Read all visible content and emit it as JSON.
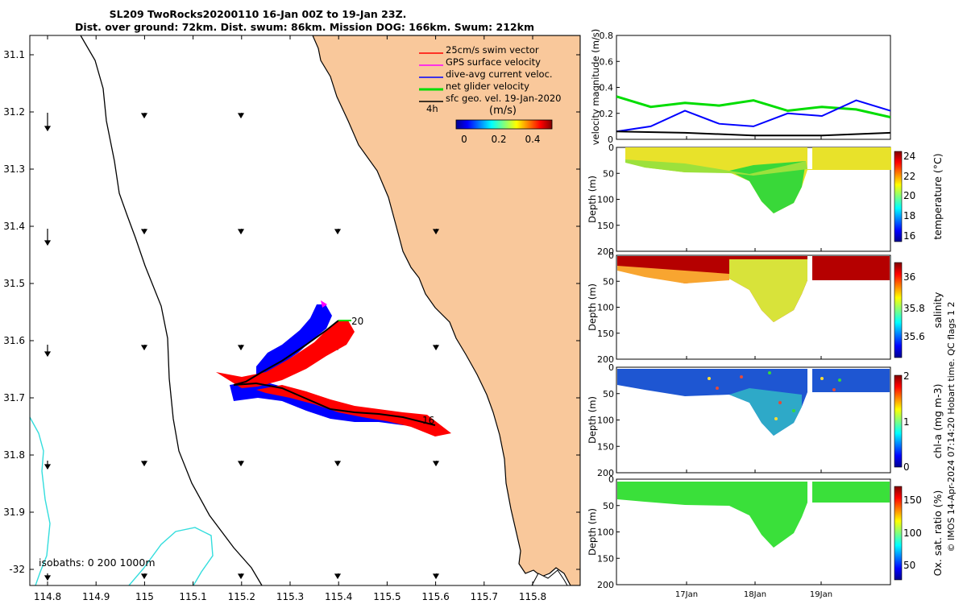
{
  "title": {
    "line1": "SL209 TwoRocks20200110 16-Jan 00Z to 19-Jan 23Z.",
    "line2": "Dist. over ground: 72km. Dist. swum: 86km. Mission DOG: 166km. Swum: 212km"
  },
  "map": {
    "x_ticks": [
      "114.8",
      "114.9",
      "115",
      "115.1",
      "115.2",
      "115.3",
      "115.4",
      "115.5",
      "115.6",
      "115.7",
      "115.8"
    ],
    "y_ticks": [
      "31.1",
      "31.2",
      "31.3",
      "31.4",
      "31.5",
      "31.6",
      "31.7",
      "31.8",
      "31.9",
      "-32"
    ],
    "legend": [
      {
        "label": "25cm/s swim vector",
        "color": "#ff0000"
      },
      {
        "label": "GPS surface velocity",
        "color": "#ff00ff"
      },
      {
        "label": "dive-avg current veloc.",
        "color": "#0000ff"
      },
      {
        "label": "net glider velocity",
        "color": "#00dd00"
      },
      {
        "label": "sfc geo. vel. 19-Jan-2020",
        "color": "#000000"
      }
    ],
    "legend_scale_label": "4h",
    "colorbar": {
      "title": "(m/s)",
      "ticks": [
        "0",
        "0.2",
        "0.4"
      ]
    },
    "track_labels": {
      "start": "16",
      "end": "20"
    },
    "isobaths_label": "isobaths: 0   200  1000m",
    "colors": {
      "land": "#f9c89b",
      "ocean": "#ffffff",
      "coast": "#000000",
      "isobath": "#33dddd",
      "current": "#0000ff",
      "swim": "#ff0000"
    }
  },
  "velocity_panel": {
    "ylabel": "velocity magnitude (m/s)",
    "y_ticks": [
      "0",
      "0.2",
      "0.4",
      "0.6",
      "0.8"
    ],
    "ylim": [
      0,
      0.8
    ]
  },
  "sections": [
    {
      "ylabel": "Depth (m)",
      "cbar_label": "temperature (°C)",
      "cbar_ticks": [
        "24",
        "22",
        "20",
        "18",
        "16"
      ],
      "y_ticks": [
        "0",
        "50",
        "100",
        "150",
        "200"
      ]
    },
    {
      "ylabel": "Depth (m)",
      "cbar_label": "salinity",
      "cbar_ticks": [
        "36",
        "35.8",
        "35.6"
      ],
      "y_ticks": [
        "0",
        "50",
        "100",
        "150",
        "200"
      ]
    },
    {
      "ylabel": "Depth (m)",
      "cbar_label": "chl-a (mg m-3)",
      "cbar_ticks": [
        "2",
        "1",
        "0"
      ],
      "y_ticks": [
        "0",
        "50",
        "100",
        "150",
        "200"
      ]
    },
    {
      "ylabel": "Depth (m)",
      "cbar_label": "Ox. sat. ratio (%)",
      "cbar_ticks": [
        "150",
        "100",
        "50"
      ],
      "y_ticks": [
        "0",
        "50",
        "100",
        "150",
        "200"
      ]
    }
  ],
  "time_ticks": [
    "17Jan",
    "18Jan",
    "19Jan"
  ],
  "footer": "© IMOS 14-Apr-2024 07:14:20 Hobart time. QC flags 1  2",
  "chart_data": [
    {
      "type": "line",
      "title": "",
      "xlabel": "",
      "ylabel": "velocity magnitude (m/s)",
      "ylim": [
        0,
        0.8
      ],
      "x_ticks": [
        "17Jan",
        "18Jan",
        "19Jan"
      ],
      "series": [
        {
          "name": "net glider velocity",
          "color": "#00dd00",
          "x": [
            16.0,
            16.5,
            17.0,
            17.5,
            18.0,
            18.5,
            19.0,
            19.5,
            20.0
          ],
          "values": [
            0.33,
            0.25,
            0.28,
            0.26,
            0.3,
            0.22,
            0.25,
            0.23,
            0.17
          ]
        },
        {
          "name": "dive-avg current veloc.",
          "color": "#0000ff",
          "x": [
            16.0,
            16.5,
            17.0,
            17.5,
            18.0,
            18.5,
            19.0,
            19.5,
            20.0
          ],
          "values": [
            0.06,
            0.1,
            0.22,
            0.12,
            0.1,
            0.2,
            0.18,
            0.3,
            0.22
          ]
        },
        {
          "name": "sfc geo. vel. 19-Jan-2020",
          "color": "#000000",
          "x": [
            16.0,
            17.0,
            18.0,
            19.0,
            20.0
          ],
          "values": [
            0.06,
            0.05,
            0.03,
            0.03,
            0.05
          ]
        }
      ]
    },
    {
      "type": "heatmap",
      "variable": "temperature (°C)",
      "ylabel": "Depth (m)",
      "ylim": [
        200,
        0
      ],
      "clim": [
        15,
        24.5
      ],
      "cbar_ticks": [
        16,
        18,
        20,
        22,
        24
      ]
    },
    {
      "type": "heatmap",
      "variable": "salinity",
      "ylabel": "Depth (m)",
      "ylim": [
        200,
        0
      ],
      "clim": [
        35.5,
        36.1
      ],
      "cbar_ticks": [
        35.6,
        35.8,
        36
      ]
    },
    {
      "type": "heatmap",
      "variable": "chl-a (mg m-3)",
      "ylabel": "Depth (m)",
      "ylim": [
        200,
        0
      ],
      "clim": [
        0,
        2
      ],
      "cbar_ticks": [
        0,
        1,
        2
      ]
    },
    {
      "type": "heatmap",
      "variable": "Ox. sat. ratio (%)",
      "ylabel": "Depth (m)",
      "ylim": [
        200,
        0
      ],
      "clim": [
        30,
        175
      ],
      "cbar_ticks": [
        50,
        100,
        150
      ]
    }
  ]
}
